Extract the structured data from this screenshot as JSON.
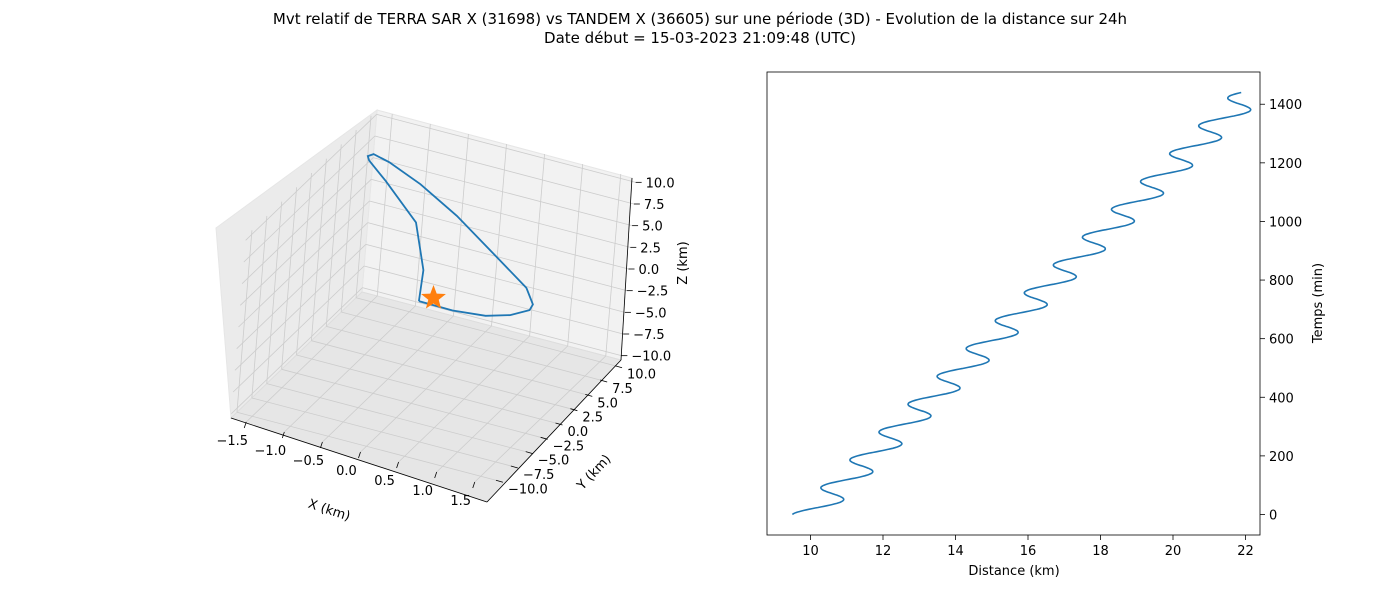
{
  "title": {
    "line1": "Mvt relatif de TERRA SAR X (31698) vs TANDEM X (36605) sur une période (3D) - Evolution de la distance sur 24h",
    "line2": "Date début = 15-03-2023 21:09:48 (UTC)"
  },
  "colors": {
    "series": "#1f77b4",
    "marker": "#ff7f0e",
    "pane": "#f2f2f2",
    "grid": "#cccccc"
  },
  "chart_data": [
    {
      "type": "line3d",
      "xlabel": "X (km)",
      "ylabel": "Y (km)",
      "zlabel": "Z (km)",
      "xlim": [
        -1.7,
        1.7
      ],
      "ylim": [
        -11,
        11
      ],
      "zlim": [
        -10.5,
        10.5
      ],
      "xticks": [
        "−1.5",
        "−1.0",
        "−0.5",
        "0.0",
        "0.5",
        "1.0",
        "1.5"
      ],
      "yticks": [
        "−10.0",
        "−7.5",
        "−5.0",
        "−2.5",
        "0.0",
        "2.5",
        "5.0",
        "7.5",
        "10.0"
      ],
      "zticks": [
        "−10.0",
        "−7.5",
        "−5.0",
        "−2.5",
        "0.0",
        "2.5",
        "5.0",
        "7.5",
        "10.0"
      ],
      "series": [
        {
          "points": [
            [
              -0.1,
              -1.2,
              0.2
            ],
            [
              0.4,
              -2.0,
              0.8
            ],
            [
              0.9,
              -3.0,
              2.0
            ],
            [
              1.3,
              -4.2,
              3.8
            ],
            [
              1.6,
              -5.0,
              5.6
            ],
            [
              1.65,
              -5.2,
              6.5
            ],
            [
              1.5,
              -4.5,
              7.6
            ],
            [
              1.0,
              -2.8,
              8.6
            ],
            [
              0.2,
              0.2,
              9.8
            ],
            [
              -0.5,
              3.0,
              10.0
            ],
            [
              -1.1,
              5.5,
              9.5
            ],
            [
              -1.45,
              7.5,
              8.3
            ],
            [
              -1.6,
              8.6,
              7.0
            ],
            [
              -1.6,
              8.9,
              6.3
            ],
            [
              -1.3,
              8.0,
              5.2
            ],
            [
              -0.7,
              5.6,
              3.4
            ],
            [
              -0.3,
              2.0,
              1.2
            ],
            [
              -0.1,
              -1.2,
              0.2
            ]
          ]
        }
      ],
      "marker": {
        "label": "star",
        "point": [
          0,
          0,
          0
        ]
      }
    },
    {
      "type": "line",
      "xlabel": "Distance (km)",
      "ylabel": "Temps (min)",
      "xlim": [
        8.8,
        22.4
      ],
      "ylim": [
        -70,
        1510
      ],
      "xticks": [
        10,
        12,
        14,
        16,
        18,
        20,
        22
      ],
      "yticks": [
        0,
        200,
        400,
        600,
        800,
        1000,
        1200,
        1400
      ],
      "yaxis_position": "right",
      "series": [
        {
          "model": "distance = 9.5 + 0.00844*t + 0.5*(1 - cos(2*pi*t/95)), t from 0 to 1440 min",
          "t_start": 0,
          "t_end": 1440,
          "period_min": 95,
          "base": 9.5,
          "slope": 0.00844,
          "amplitude": 0.5
        }
      ]
    }
  ]
}
